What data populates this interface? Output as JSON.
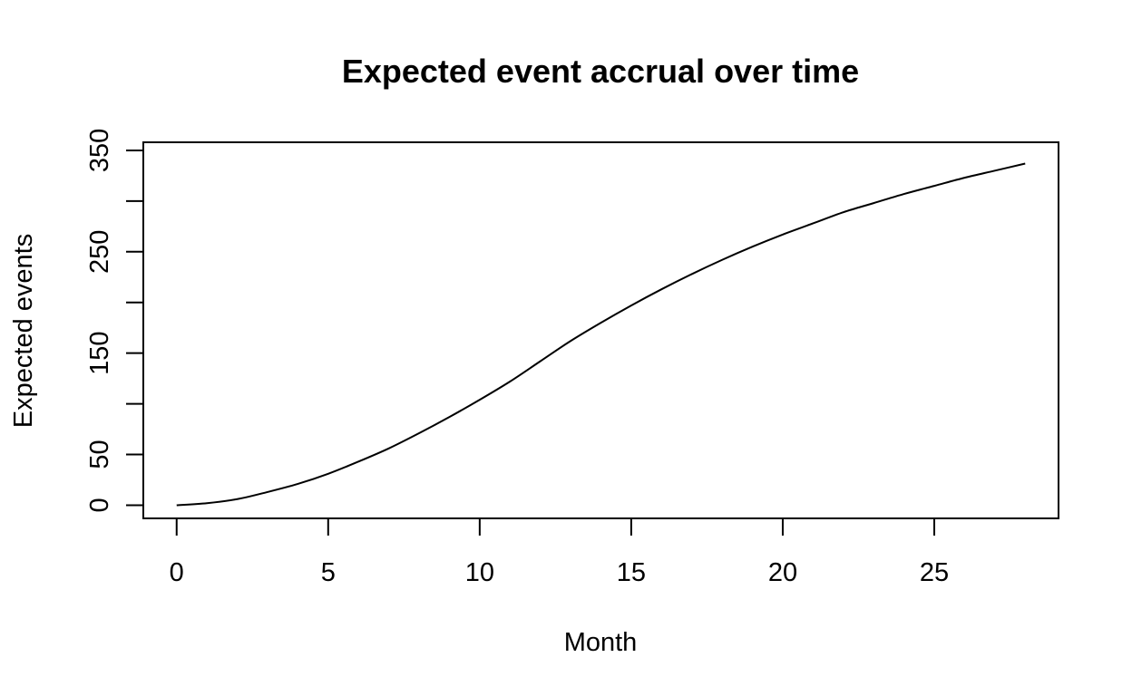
{
  "chart_data": {
    "type": "line",
    "title": "Expected event accrual over time",
    "xlabel": "Month",
    "ylabel": "Expected events",
    "xlim": [
      -1.1,
      29.1
    ],
    "ylim": [
      -13,
      358
    ],
    "x_ticks": [
      0,
      5,
      10,
      15,
      20,
      25
    ],
    "x_tick_labels": [
      "0",
      "5",
      "10",
      "15",
      "20",
      "25"
    ],
    "y_ticks": [
      0,
      50,
      100,
      150,
      200,
      250,
      300,
      350
    ],
    "y_tick_labels": [
      "0",
      "50",
      "",
      "150",
      "",
      "250",
      "",
      "350"
    ],
    "grid": false,
    "legend": "none",
    "series": [
      {
        "color": "#000000",
        "x": [
          0,
          1,
          2,
          3,
          4,
          5,
          6,
          7,
          8,
          9,
          10,
          11,
          12,
          13,
          14,
          15,
          16,
          17,
          18,
          19,
          20,
          21,
          22,
          23,
          24,
          25,
          26,
          27,
          28
        ],
        "y": [
          0,
          2,
          6,
          13,
          21,
          31,
          43,
          56,
          71,
          87,
          104,
          122,
          142,
          162,
          180,
          197,
          213,
          228,
          242,
          255,
          267,
          278,
          289,
          298,
          307,
          315,
          323,
          330,
          337
        ]
      }
    ]
  }
}
